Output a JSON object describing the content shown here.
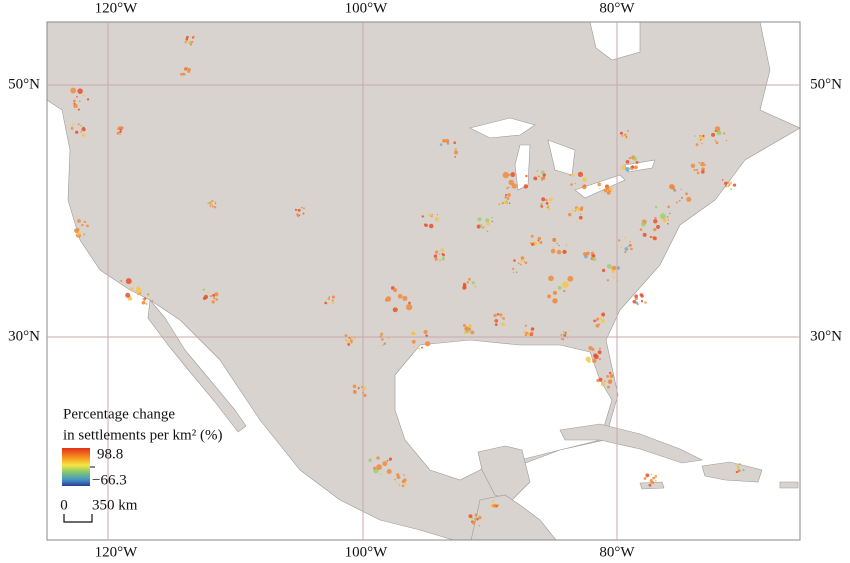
{
  "map": {
    "longitude_labels": [
      "120°W",
      "100°W",
      "80°W"
    ],
    "latitude_labels": [
      "50°N",
      "30°N"
    ],
    "legend": {
      "title_lines": [
        "Percentage change",
        "in settlements per km² (%)"
      ],
      "max_label": "98.8",
      "min_label": "−66.3"
    },
    "scale_bar": {
      "start_label": "0",
      "end_label": "350 km"
    }
  }
}
